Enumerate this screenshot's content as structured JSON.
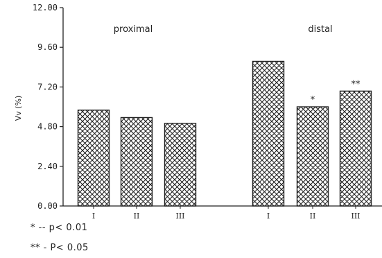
{
  "chart_data": {
    "type": "bar",
    "ylabel": "Vv (%)",
    "ylim": [
      0,
      12
    ],
    "yticks": [
      "0.00",
      "2.40",
      "4.80",
      "7.20",
      "9.60",
      "12.00"
    ],
    "groups": [
      {
        "name": "proximal",
        "categories": [
          "I",
          "II",
          "III"
        ],
        "values": [
          5.8,
          5.35,
          5.0
        ],
        "annotations": [
          "",
          "",
          ""
        ]
      },
      {
        "name": "distal",
        "categories": [
          "I",
          "II",
          "III"
        ],
        "values": [
          8.75,
          6.0,
          6.95
        ],
        "annotations": [
          "",
          "*",
          "**"
        ]
      }
    ],
    "grid": false,
    "fill": "crosshatch"
  },
  "footnotes": {
    "line1": "* -- p< 0.01",
    "line2": "** - P< 0.05"
  },
  "colors": {
    "ink": "#222222",
    "background": "#ffffff"
  }
}
